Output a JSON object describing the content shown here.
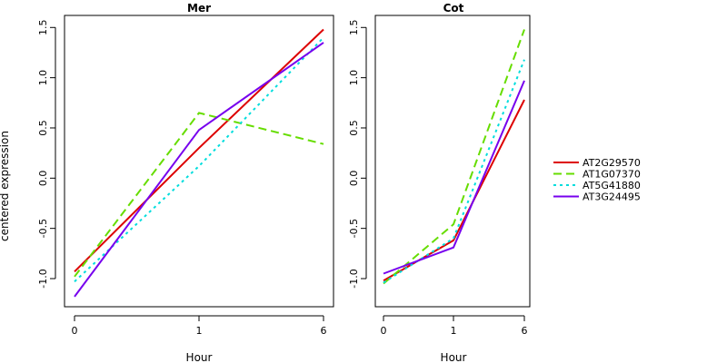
{
  "chart_data": [
    {
      "type": "line",
      "title": "Mer",
      "xlabel": "Hour",
      "ylabel": "centered expression",
      "categories": [
        "0",
        "1",
        "6"
      ],
      "ylim": [
        -1.28,
        1.62
      ],
      "yticks": [
        -1.0,
        -0.5,
        0.0,
        0.5,
        1.0,
        1.5
      ],
      "ytick_labels": [
        "-1.0",
        "-0.5",
        "0.0",
        "0.5",
        "1.0",
        "1.5"
      ],
      "series": [
        {
          "name": "AT2G29570",
          "values": [
            -0.93,
            0.3,
            1.48
          ]
        },
        {
          "name": "AT1G07370",
          "values": [
            -0.98,
            0.65,
            0.34
          ]
        },
        {
          "name": "AT5G41880",
          "values": [
            -1.03,
            0.12,
            1.4
          ]
        },
        {
          "name": "AT3G24495",
          "values": [
            -1.18,
            0.48,
            1.35
          ]
        }
      ]
    },
    {
      "type": "line",
      "title": "Cot",
      "xlabel": "Hour",
      "ylabel": "",
      "categories": [
        "0",
        "1",
        "6"
      ],
      "ylim": [
        -1.28,
        1.62
      ],
      "yticks": [
        -1.0,
        -0.5,
        0.0,
        0.5,
        1.0,
        1.5
      ],
      "ytick_labels": [
        "-1.0",
        "-0.5",
        "0.0",
        "0.5",
        "1.0",
        "1.5"
      ],
      "series": [
        {
          "name": "AT2G29570",
          "values": [
            -1.02,
            -0.62,
            0.78
          ]
        },
        {
          "name": "AT1G07370",
          "values": [
            -1.05,
            -0.46,
            1.48
          ]
        },
        {
          "name": "AT5G41880",
          "values": [
            -1.04,
            -0.6,
            1.18
          ]
        },
        {
          "name": "AT3G24495",
          "values": [
            -0.95,
            -0.69,
            0.97
          ]
        }
      ]
    }
  ],
  "legend": {
    "placement": "right",
    "entries": [
      {
        "label": "AT2G29570",
        "color": "#dd0000",
        "dash": "solid"
      },
      {
        "label": "AT1G07370",
        "color": "#66dd00",
        "dash": "dashed"
      },
      {
        "label": "AT5G41880",
        "color": "#00dddd",
        "dash": "dotted"
      },
      {
        "label": "AT3G24495",
        "color": "#7700ee",
        "dash": "solid"
      }
    ]
  }
}
